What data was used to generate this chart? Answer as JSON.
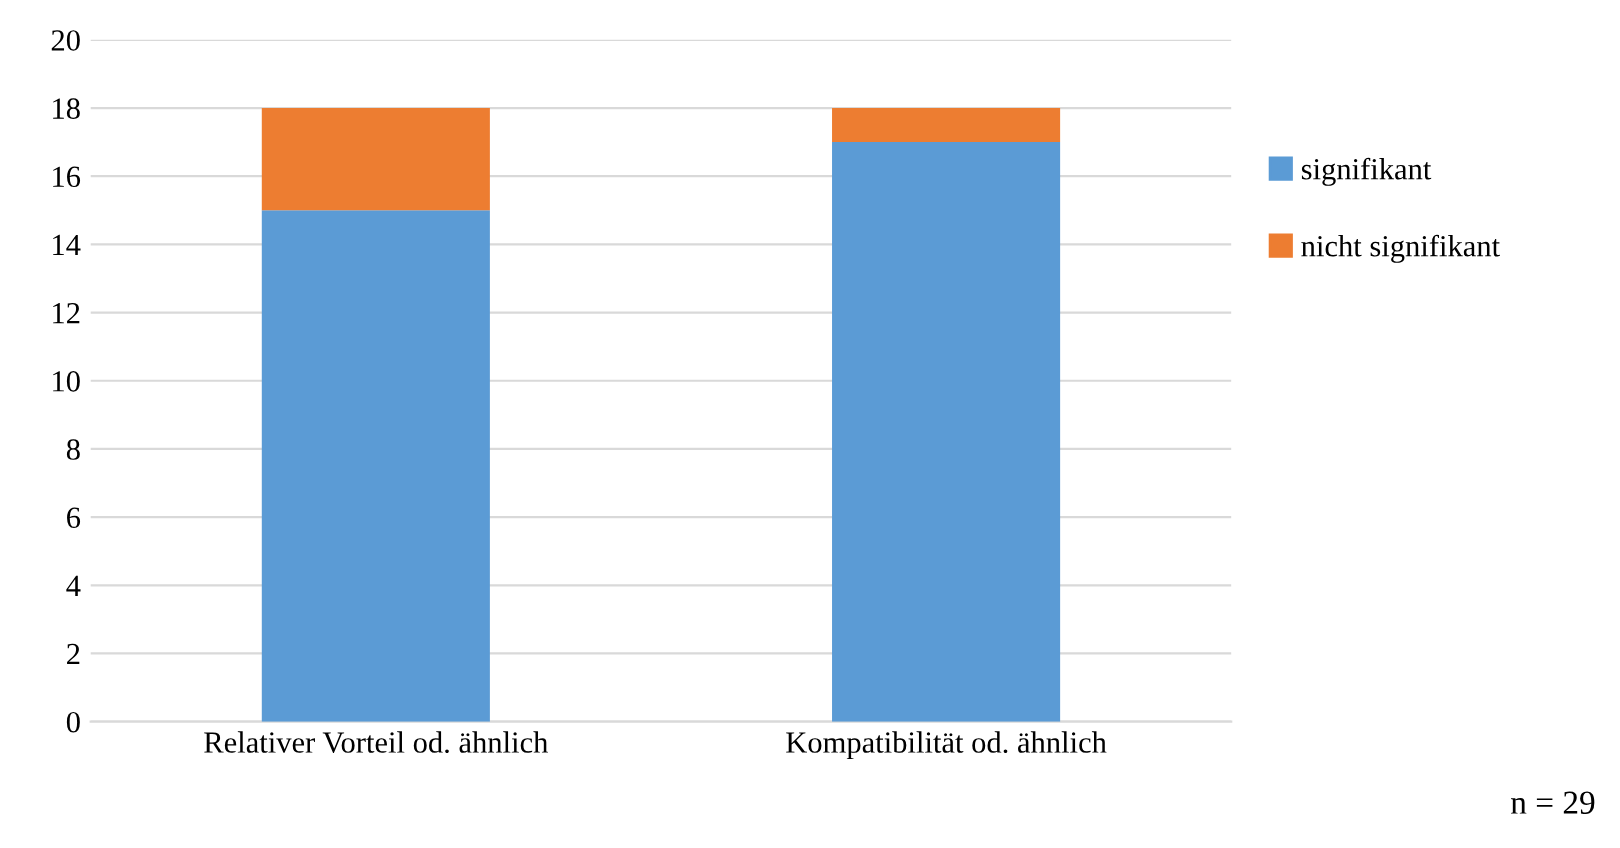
{
  "chart_data": {
    "type": "bar",
    "stacked": true,
    "categories": [
      "Relativer Vorteil od. ähnlich",
      "Kompatibilität od. ähnlich"
    ],
    "series": [
      {
        "name": "signifikant",
        "color": "#5b9bd5",
        "values": [
          15,
          17
        ]
      },
      {
        "name": "nicht signifikant",
        "color": "#ed7d31",
        "values": [
          3,
          1
        ]
      }
    ],
    "ylim": [
      0,
      20
    ],
    "yticks": [
      0,
      2,
      4,
      6,
      8,
      10,
      12,
      14,
      16,
      18,
      20
    ],
    "grid": "y",
    "legend": "right",
    "annotations": [
      "n = 29"
    ]
  }
}
